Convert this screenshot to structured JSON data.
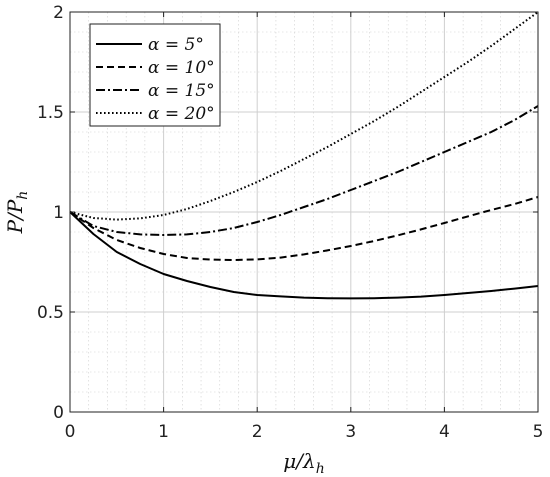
{
  "chart_data": {
    "type": "line",
    "title": "",
    "xlabel": "μ/λ_h",
    "ylabel": "P/P_h",
    "xlim": [
      0,
      5
    ],
    "ylim": [
      0,
      2
    ],
    "x_ticks": [
      0,
      1,
      2,
      3,
      4,
      5
    ],
    "y_ticks": [
      0,
      0.5,
      1,
      1.5,
      2
    ],
    "x_tick_labels": [
      "0",
      "1",
      "2",
      "3",
      "4",
      "5"
    ],
    "y_tick_labels": [
      "0",
      "0.5",
      "1",
      "1.5",
      "2"
    ],
    "grid": true,
    "minor_grid": true,
    "legend_position": "top-left",
    "x": [
      0,
      0.25,
      0.5,
      0.75,
      1,
      1.25,
      1.5,
      1.75,
      2,
      2.25,
      2.5,
      2.75,
      3,
      3.25,
      3.5,
      3.75,
      4,
      4.25,
      4.5,
      4.75,
      5
    ],
    "series": [
      {
        "name": "α = 5°",
        "style": "solid",
        "values": [
          1.0,
          0.89,
          0.8,
          0.74,
          0.69,
          0.655,
          0.625,
          0.6,
          0.585,
          0.578,
          0.572,
          0.569,
          0.568,
          0.569,
          0.572,
          0.577,
          0.585,
          0.595,
          0.605,
          0.617,
          0.63
        ]
      },
      {
        "name": "α = 10°",
        "style": "dashed",
        "values": [
          1.0,
          0.92,
          0.86,
          0.82,
          0.79,
          0.77,
          0.762,
          0.76,
          0.763,
          0.772,
          0.788,
          0.808,
          0.83,
          0.855,
          0.883,
          0.913,
          0.945,
          0.978,
          1.01,
          1.04,
          1.075
        ]
      },
      {
        "name": "α = 15°",
        "style": "dashdot",
        "values": [
          1.0,
          0.93,
          0.9,
          0.888,
          0.885,
          0.888,
          0.9,
          0.92,
          0.95,
          0.985,
          1.025,
          1.065,
          1.11,
          1.155,
          1.2,
          1.25,
          1.3,
          1.35,
          1.4,
          1.46,
          1.53
        ]
      },
      {
        "name": "α = 20°",
        "style": "dotted",
        "values": [
          1.0,
          0.97,
          0.962,
          0.968,
          0.985,
          1.015,
          1.055,
          1.1,
          1.15,
          1.205,
          1.265,
          1.325,
          1.39,
          1.455,
          1.525,
          1.6,
          1.675,
          1.75,
          1.83,
          1.915,
          2.0
        ]
      }
    ]
  },
  "colors": {
    "line": "#000000",
    "grid": "#cfcfcf",
    "axes": "#222222",
    "background": "#ffffff"
  }
}
